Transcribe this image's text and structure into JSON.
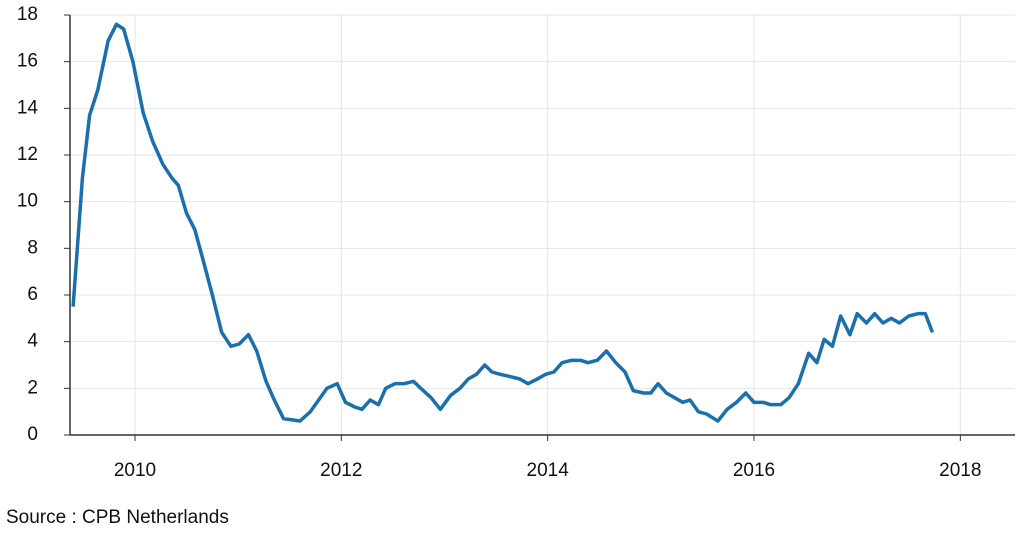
{
  "chart_data": {
    "type": "line",
    "source": "Source : CPB Netherlands",
    "x": [
      2009.4,
      2009.49,
      2009.56,
      2009.64,
      2009.74,
      2009.82,
      2009.89,
      2009.98,
      2010.08,
      2010.17,
      2010.27,
      2010.36,
      2010.42,
      2010.5,
      2010.58,
      2010.66,
      2010.75,
      2010.84,
      2010.93,
      2011.01,
      2011.1,
      2011.18,
      2011.27,
      2011.35,
      2011.44,
      2011.6,
      2011.7,
      2011.78,
      2011.86,
      2011.96,
      2012.04,
      2012.13,
      2012.2,
      2012.28,
      2012.36,
      2012.43,
      2012.52,
      2012.61,
      2012.7,
      2012.77,
      2012.87,
      2012.96,
      2013.06,
      2013.15,
      2013.23,
      2013.31,
      2013.39,
      2013.46,
      2013.54,
      2013.64,
      2013.73,
      2013.81,
      2013.9,
      2013.98,
      2014.06,
      2014.14,
      2014.23,
      2014.32,
      2014.39,
      2014.48,
      2014.57,
      2014.66,
      2014.75,
      2014.83,
      2014.93,
      2015.0,
      2015.07,
      2015.15,
      2015.23,
      2015.31,
      2015.38,
      2015.46,
      2015.54,
      2015.65,
      2015.74,
      2015.83,
      2015.92,
      2016.0,
      2016.09,
      2016.16,
      2016.26,
      2016.34,
      2016.43,
      2016.53,
      2016.61,
      2016.68,
      2016.76,
      2016.84,
      2016.93,
      2017.0,
      2017.09,
      2017.17,
      2017.25,
      2017.33,
      2017.41,
      2017.5,
      2017.59,
      2017.66,
      2017.73
    ],
    "series": [
      {
        "color": "#1a6fae",
        "values": [
          5.5,
          11,
          13.7,
          14.8,
          16.9,
          17.6,
          17.4,
          16,
          13.8,
          12.6,
          11.6,
          11,
          10.7,
          9.5,
          8.8,
          7.5,
          6.0,
          4.4,
          3.8,
          3.9,
          4.3,
          3.6,
          2.3,
          1.5,
          0.7,
          0.6,
          1.0,
          1.5,
          2.0,
          2.2,
          1.4,
          1.2,
          1.1,
          1.5,
          1.3,
          2.0,
          2.2,
          2.2,
          2.3,
          2.0,
          1.6,
          1.1,
          1.7,
          2.0,
          2.4,
          2.6,
          3.0,
          2.7,
          2.6,
          2.5,
          2.4,
          2.2,
          2.4,
          2.6,
          2.7,
          3.1,
          3.2,
          3.2,
          3.1,
          3.2,
          3.6,
          3.1,
          2.7,
          1.9,
          1.8,
          1.8,
          2.2,
          1.8,
          1.6,
          1.4,
          1.5,
          1.0,
          0.9,
          0.6,
          1.1,
          1.4,
          1.8,
          1.4,
          1.4,
          1.3,
          1.3,
          1.6,
          2.2,
          3.5,
          3.1,
          4.1,
          3.8,
          5.1,
          4.3,
          5.2,
          4.8,
          5.2,
          4.8,
          5.0,
          4.8,
          5.1,
          5.2,
          5.2,
          4.4
        ]
      }
    ],
    "xlim": [
      2009.37,
      2018.53
    ],
    "xticks": [
      2010,
      2012,
      2014,
      2016,
      2018
    ],
    "ylim": [
      0,
      18
    ],
    "yticks": [
      0,
      2,
      4,
      6,
      8,
      10,
      12,
      14,
      16,
      18
    ],
    "grid": true
  }
}
